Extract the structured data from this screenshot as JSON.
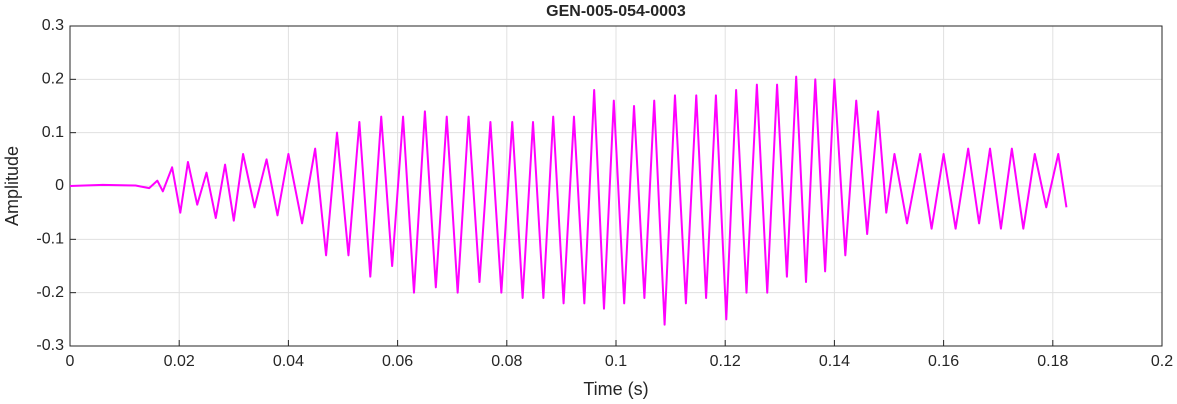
{
  "chart_data": {
    "type": "line",
    "title": "GEN-005-054-0003",
    "xlabel": "Time (s)",
    "ylabel": "Amplitude",
    "xlim": [
      0,
      0.2
    ],
    "ylim": [
      -0.3,
      0.3
    ],
    "xticks": [
      0,
      0.02,
      0.04,
      0.06,
      0.08,
      0.1,
      0.12,
      0.14,
      0.16,
      0.18,
      0.2
    ],
    "yticks": [
      -0.3,
      -0.2,
      -0.1,
      0,
      0.1,
      0.2,
      0.3
    ],
    "grid": true,
    "x": [
      0,
      0.006,
      0.012,
      0.0145,
      0.016,
      0.017,
      0.0187,
      0.0202,
      0.0216,
      0.0233,
      0.025,
      0.0267,
      0.0284,
      0.03,
      0.0317,
      0.0338,
      0.036,
      0.038,
      0.04,
      0.0425,
      0.0449,
      0.0469,
      0.0489,
      0.051,
      0.053,
      0.055,
      0.057,
      0.059,
      0.061,
      0.063,
      0.065,
      0.067,
      0.069,
      0.071,
      0.073,
      0.075,
      0.077,
      0.079,
      0.081,
      0.0829,
      0.0848,
      0.0867,
      0.0885,
      0.0904,
      0.0923,
      0.0942,
      0.096,
      0.0978,
      0.0996,
      0.1015,
      0.1033,
      0.1052,
      0.107,
      0.1089,
      0.1108,
      0.1128,
      0.1147,
      0.1165,
      0.1183,
      0.1202,
      0.122,
      0.1239,
      0.1258,
      0.1277,
      0.1295,
      0.1313,
      0.133,
      0.1348,
      0.1365,
      0.1383,
      0.14,
      0.142,
      0.144,
      0.146,
      0.148,
      0.1495,
      0.151,
      0.1533,
      0.1557,
      0.1578,
      0.16,
      0.1622,
      0.1645,
      0.1665,
      0.1685,
      0.1705,
      0.1725,
      0.1746,
      0.1767,
      0.1788,
      0.181,
      0.1825
    ],
    "series": [
      {
        "name": "Amplitude",
        "color": "#ff00ff",
        "values": [
          0,
          0.002,
          0.001,
          -0.004,
          0.01,
          -0.01,
          0.035,
          -0.05,
          0.045,
          -0.035,
          0.025,
          -0.06,
          0.04,
          -0.065,
          0.06,
          -0.04,
          0.05,
          -0.055,
          0.06,
          -0.07,
          0.07,
          -0.13,
          0.1,
          -0.13,
          0.12,
          -0.17,
          0.13,
          -0.15,
          0.13,
          -0.2,
          0.14,
          -0.19,
          0.13,
          -0.2,
          0.13,
          -0.18,
          0.12,
          -0.2,
          0.12,
          -0.21,
          0.12,
          -0.21,
          0.13,
          -0.22,
          0.13,
          -0.22,
          0.18,
          -0.23,
          0.16,
          -0.22,
          0.15,
          -0.21,
          0.16,
          -0.26,
          0.17,
          -0.22,
          0.17,
          -0.21,
          0.17,
          -0.25,
          0.18,
          -0.2,
          0.19,
          -0.2,
          0.19,
          -0.17,
          0.205,
          -0.18,
          0.2,
          -0.16,
          0.2,
          -0.13,
          0.16,
          -0.09,
          0.14,
          -0.05,
          0.06,
          -0.07,
          0.06,
          -0.08,
          0.06,
          -0.08,
          0.07,
          -0.07,
          0.07,
          -0.08,
          0.07,
          -0.08,
          0.06,
          -0.04,
          0.06,
          -0.04
        ]
      }
    ]
  }
}
